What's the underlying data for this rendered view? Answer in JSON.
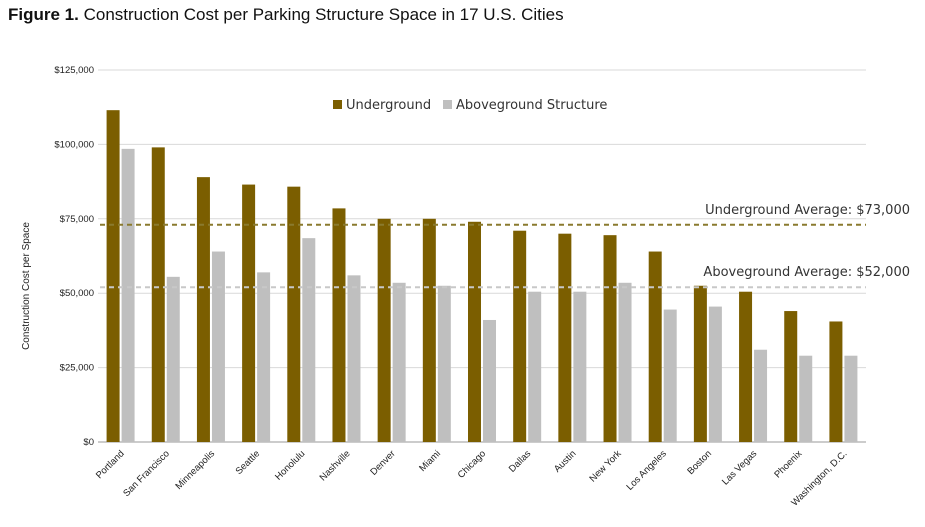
{
  "figure": {
    "label": "Figure 1.",
    "title": "Construction Cost per Parking Structure Space in 17 U.S. Cities"
  },
  "chart_data": {
    "type": "bar",
    "ylabel": "Construction Cost per Space",
    "ylim": [
      0,
      125000
    ],
    "yticks": [
      0,
      25000,
      50000,
      75000,
      100000,
      125000
    ],
    "ytick_labels": [
      "$0",
      "$25,000",
      "$50,000",
      "$75,000",
      "$100,000",
      "$125,000"
    ],
    "grid": true,
    "legend_position": "top-center",
    "categories": [
      "Portland",
      "San Francisco",
      "Minneapolis",
      "Seattle",
      "Honolulu",
      "Nashville",
      "Denver",
      "Miami",
      "Chicago",
      "Dallas",
      "Austin",
      "New York",
      "Los Angeles",
      "Boston",
      "Las Vegas",
      "Phoenix",
      "Washington, D.C."
    ],
    "series": [
      {
        "name": "Underground",
        "color": "#7b5e00",
        "values": [
          111500,
          99000,
          89000,
          86500,
          85800,
          78500,
          75000,
          75000,
          74000,
          71000,
          70000,
          69500,
          64000,
          52500,
          50500,
          44000,
          40500
        ]
      },
      {
        "name": "Aboveground Structure",
        "color": "#bfbfbf",
        "values": [
          98500,
          55500,
          64000,
          57000,
          68500,
          56000,
          53500,
          52500,
          41000,
          50500,
          50500,
          53500,
          44500,
          45500,
          31000,
          29000,
          29000
        ]
      }
    ],
    "reference_lines": [
      {
        "label": "Underground Average: $73,000",
        "value": 73000,
        "color": "#8a7a2e"
      },
      {
        "label": "Aboveground Average: $52,000",
        "value": 52000,
        "color": "#c8c8c8"
      }
    ]
  }
}
